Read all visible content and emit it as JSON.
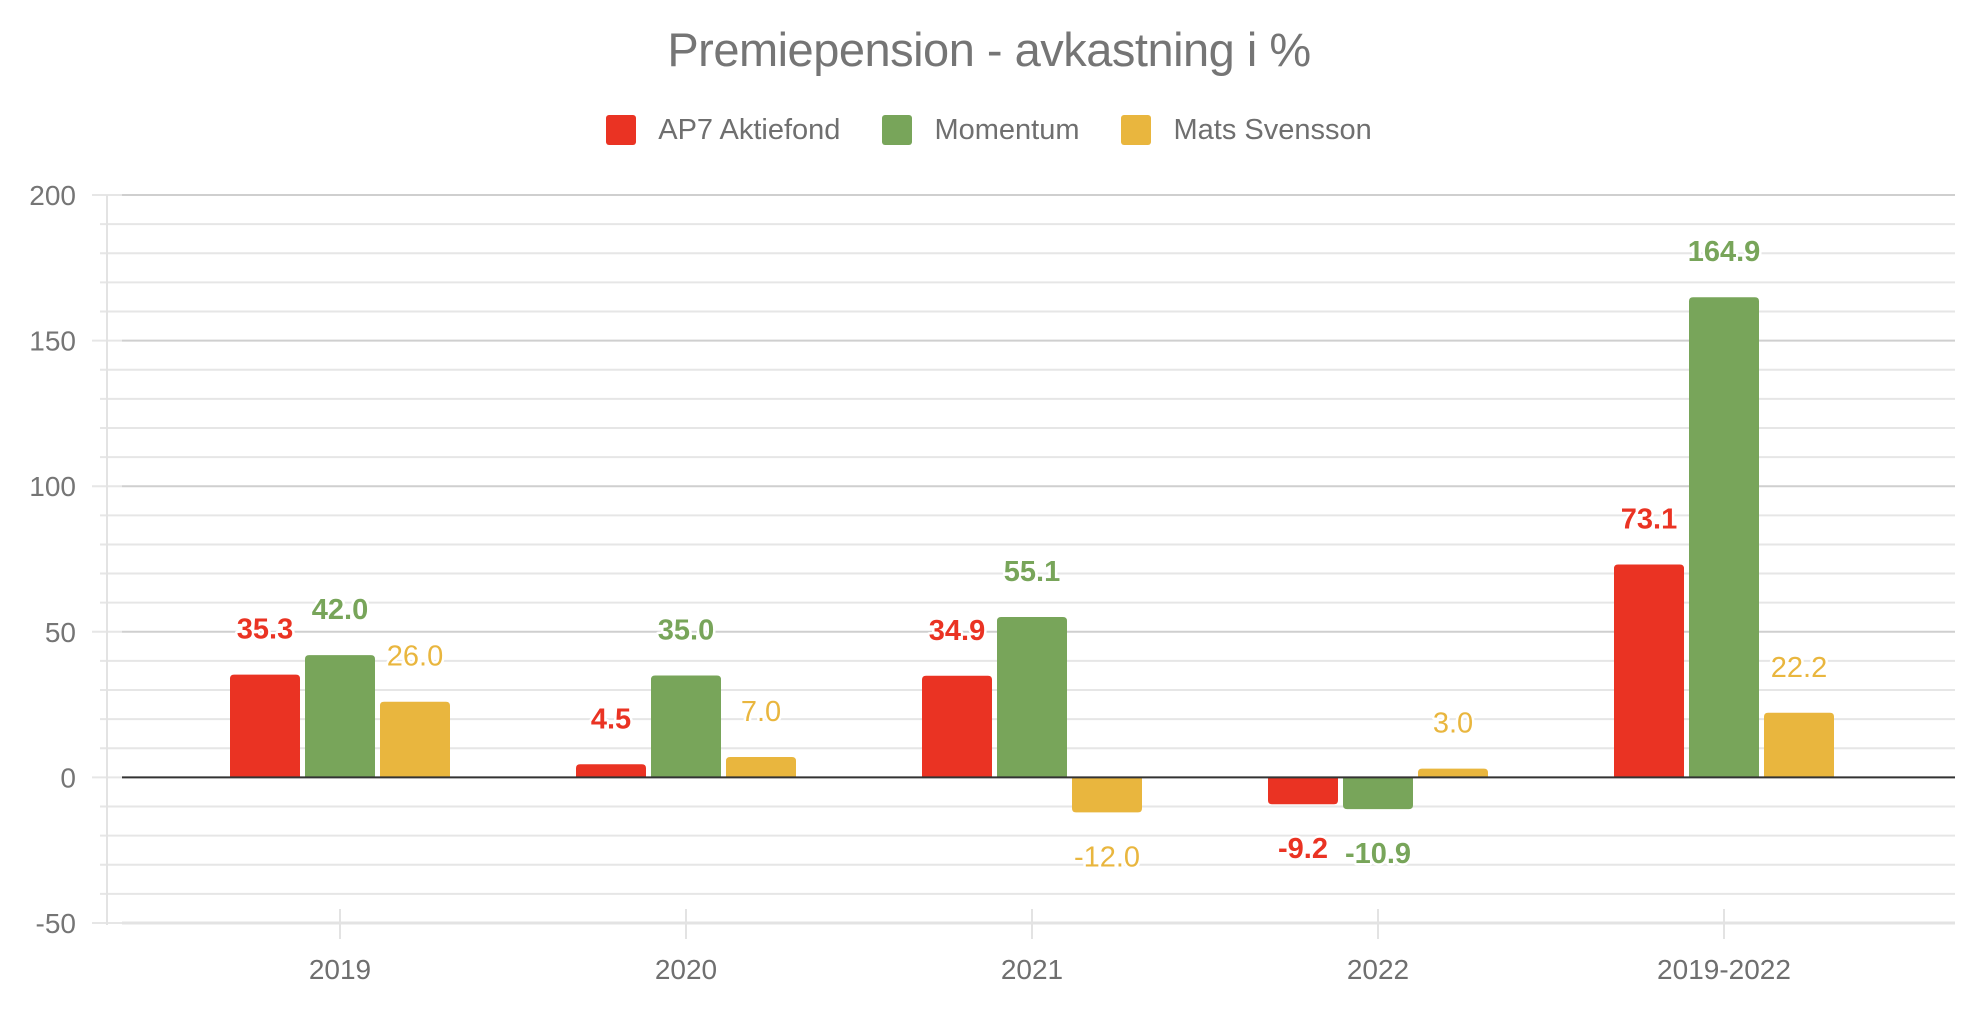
{
  "chart": {
    "title": "Premiepension - avkastning i %",
    "legend": [
      {
        "label": "AP7 Aktiefond",
        "color": "#EA3323"
      },
      {
        "label": "Momentum",
        "color": "#78A55A"
      },
      {
        "label": "Mats Svensson",
        "color": "#E9B63E"
      }
    ]
  },
  "chart_data": {
    "type": "bar",
    "title": "Premiepension - avkastning i %",
    "xlabel": "",
    "ylabel": "",
    "categories": [
      "2019",
      "2020",
      "2021",
      "2022",
      "2019-2022"
    ],
    "series": [
      {
        "name": "AP7 Aktiefond",
        "color": "#EA3323",
        "label_weight": "bold",
        "values": [
          35.3,
          4.5,
          34.9,
          -9.2,
          73.1
        ]
      },
      {
        "name": "Momentum",
        "color": "#78A55A",
        "label_weight": "bold",
        "values": [
          42.0,
          35.0,
          55.1,
          -10.9,
          164.9
        ]
      },
      {
        "name": "Mats Svensson",
        "color": "#E9B63E",
        "label_weight": "normal",
        "values": [
          26.0,
          7.0,
          -12.0,
          3.0,
          22.2
        ]
      }
    ],
    "data_labels": [
      [
        "35.3",
        "4.5",
        "34.9",
        "-9.2",
        "73.1"
      ],
      [
        "42.0",
        "35.0",
        "55.1",
        "-10.9",
        "164.9"
      ],
      [
        "26.0",
        "7.0",
        "-12.0",
        "3.0",
        "22.2"
      ]
    ],
    "ylim": [
      -50,
      200
    ],
    "y_ticks": [
      200,
      150,
      100,
      50,
      0,
      -50
    ],
    "y_minor_step": 10,
    "grid": true,
    "legend_position": "top"
  }
}
